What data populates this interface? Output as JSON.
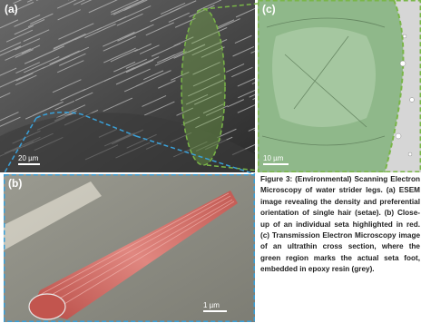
{
  "panels": {
    "a": {
      "label": "(a)",
      "scale": "20 µm"
    },
    "b": {
      "label": "(b)",
      "scale": "1 µm"
    },
    "c": {
      "label": "(c)",
      "scale": "10 µm"
    }
  },
  "caption": "Figure 3: (Environmental) Scanning Electron Microscopy of water strider legs. (a) ESEM image revealing the density and preferential orientation of single hair (setae). (b) Close-up of an individual seta highlighted in red. (c) Transmission Electron Microscopy image of an ultrathin cross section, where the green region marks the actual seta foot, embedded in epoxy resin (grey).",
  "colors": {
    "highlight_green": "#7ab648",
    "highlight_red": "#d9736c",
    "callout_blue": "#3aa0d8"
  }
}
